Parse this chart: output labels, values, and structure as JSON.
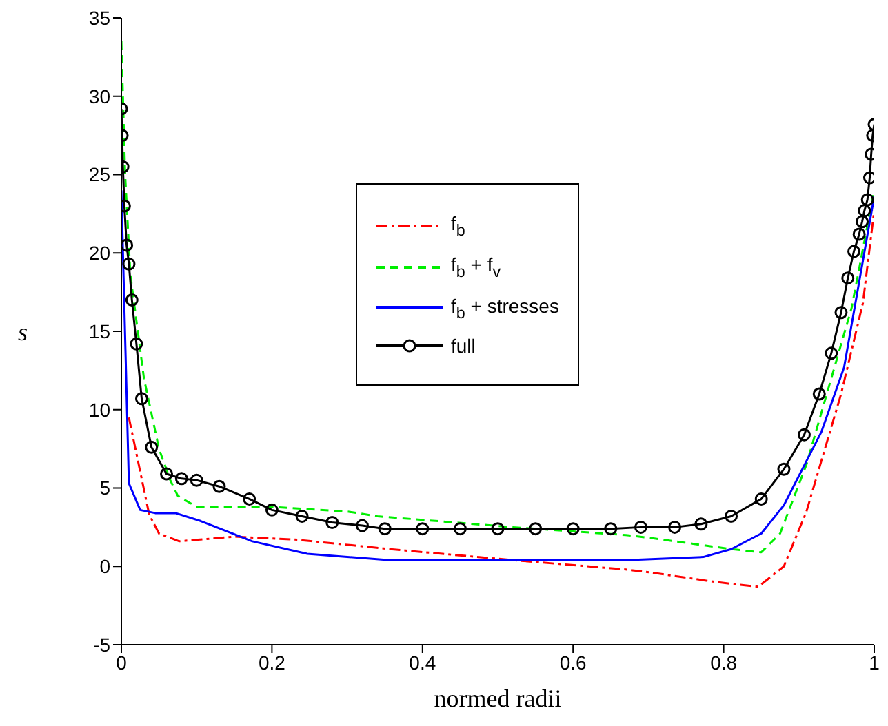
{
  "chart_data": {
    "type": "line",
    "xlabel": "normed radii",
    "ylabel": "s",
    "xlim": [
      0,
      1
    ],
    "ylim": [
      -5,
      35
    ],
    "xticks": [
      0,
      0.2,
      0.4,
      0.6,
      0.8,
      1
    ],
    "yticks": [
      -5,
      0,
      5,
      10,
      15,
      20,
      25,
      30,
      35
    ],
    "legend": "top",
    "series": [
      {
        "name": "f$_{b}$",
        "color": "#ff0000",
        "line_style": "dashdot",
        "marker": "none",
        "x": [
          0.01,
          0.037,
          0.05,
          0.077,
          0.15,
          0.234,
          0.357,
          0.52,
          0.67,
          0.705,
          0.79,
          0.846,
          0.88,
          0.91,
          0.956,
          0.985,
          1
        ],
        "values": [
          9.5,
          3.3,
          2.1,
          1.6,
          1.9,
          1.7,
          1.1,
          0.4,
          -0.2,
          -0.4,
          -1.0,
          -1.3,
          0,
          3.5,
          11,
          16.8,
          22.7
        ]
      },
      {
        "name": "f$_{b}$ + f$_{v}$",
        "color": "#00ee00",
        "line_style": "dashed",
        "marker": "none",
        "x": [
          0,
          0.005,
          0.012,
          0.03,
          0.05,
          0.065,
          0.075,
          0.1,
          0.15,
          0.2,
          0.3,
          0.34,
          0.52,
          0.67,
          0.705,
          0.81,
          0.85,
          0.875,
          0.91,
          0.94,
          0.97,
          1
        ],
        "values": [
          33.5,
          25,
          18.6,
          12,
          7.5,
          5.5,
          4.5,
          3.8,
          3.8,
          3.8,
          3.5,
          3.2,
          2.5,
          2.0,
          1.8,
          1.1,
          0.9,
          2.1,
          6.5,
          11.5,
          16.5,
          24
        ]
      },
      {
        "name": "f$_{b}$ + stresses",
        "color": "#0000ff",
        "line_style": "solid",
        "marker": "none",
        "x": [
          0,
          0.01,
          0.025,
          0.045,
          0.072,
          0.105,
          0.174,
          0.247,
          0.357,
          0.52,
          0.67,
          0.773,
          0.81,
          0.85,
          0.88,
          0.93,
          0.96,
          1
        ],
        "values": [
          24,
          5.3,
          3.6,
          3.4,
          3.4,
          2.9,
          1.6,
          0.8,
          0.4,
          0.4,
          0.4,
          0.6,
          1.1,
          2.1,
          3.9,
          8.6,
          12.7,
          23.6
        ]
      },
      {
        "name": "full",
        "color": "#000000",
        "line_style": "solid",
        "marker": "circle",
        "x": [
          0,
          0.001,
          0.002,
          0.004,
          0.007,
          0.01,
          0.014,
          0.02,
          0.027,
          0.04,
          0.06,
          0.08,
          0.1,
          0.13,
          0.17,
          0.2,
          0.24,
          0.28,
          0.32,
          0.35,
          0.4,
          0.45,
          0.5,
          0.55,
          0.6,
          0.65,
          0.69,
          0.735,
          0.77,
          0.81,
          0.85,
          0.88,
          0.907,
          0.927,
          0.943,
          0.956,
          0.965,
          0.973,
          0.98,
          0.984,
          0.987,
          0.991,
          0.994,
          0.996,
          0.998,
          1
        ],
        "values": [
          29.2,
          27.5,
          25.5,
          23,
          20.5,
          19.3,
          17,
          14.2,
          10.7,
          7.6,
          5.9,
          5.6,
          5.5,
          5.1,
          4.3,
          3.6,
          3.2,
          2.8,
          2.6,
          2.4,
          2.4,
          2.4,
          2.4,
          2.4,
          2.4,
          2.4,
          2.5,
          2.5,
          2.7,
          3.2,
          4.3,
          6.2,
          8.4,
          11,
          13.6,
          16.2,
          18.4,
          20.1,
          21.2,
          22,
          22.7,
          23.4,
          24.8,
          26.3,
          27.5,
          28.2
        ]
      }
    ]
  }
}
